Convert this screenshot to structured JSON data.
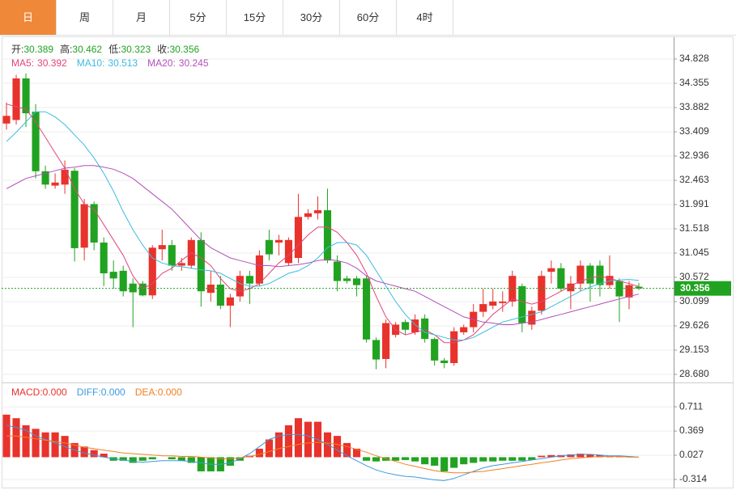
{
  "tabs": [
    "日",
    "周",
    "月",
    "5分",
    "15分",
    "30分",
    "60分",
    "4时"
  ],
  "active_tab": 0,
  "chart_data": [
    {
      "type": "candlestick",
      "header_labels": {
        "open": "开:",
        "high": "高:",
        "low": "低:",
        "close": "收:"
      },
      "up_color": "#e8322c",
      "down_color": "#21a321",
      "open": [
        33.57,
        33.64,
        34.45,
        33.8,
        32.64,
        32.36,
        32.38,
        32.65,
        31.15,
        32.0,
        31.25,
        30.68,
        30.7,
        30.45,
        30.45,
        30.22,
        31.12,
        31.2,
        30.8,
        30.8,
        31.3,
        30.27,
        30.43,
        30.02,
        30.2,
        30.6,
        30.45,
        31.3,
        31.25,
        30.85,
        30.95,
        31.75,
        31.82,
        31.88,
        30.88,
        30.55,
        30.55,
        30.55,
        29.35,
        28.98,
        29.45,
        29.7,
        29.5,
        29.77,
        29.37,
        28.95,
        28.9,
        29.5,
        29.6,
        29.9,
        30.02,
        30.07,
        30.1,
        30.4,
        29.65,
        29.92,
        30.68,
        30.75,
        30.3,
        30.45,
        30.8,
        30.8,
        30.42,
        30.5,
        30.18,
        30.389
      ],
      "high": [
        33.98,
        34.52,
        34.55,
        33.95,
        32.75,
        32.6,
        32.85,
        32.7,
        32.1,
        32.05,
        31.35,
        30.9,
        30.8,
        30.55,
        30.5,
        31.2,
        31.5,
        31.3,
        30.95,
        31.35,
        31.45,
        30.7,
        30.6,
        30.25,
        30.7,
        30.7,
        31.1,
        31.5,
        31.4,
        31.35,
        32.2,
        31.9,
        32.15,
        32.3,
        31.0,
        30.6,
        30.6,
        30.6,
        29.4,
        29.75,
        29.7,
        29.75,
        29.85,
        29.85,
        29.4,
        29.0,
        29.6,
        29.65,
        30.05,
        30.35,
        30.35,
        30.3,
        30.7,
        30.45,
        30.0,
        30.7,
        30.9,
        30.85,
        30.6,
        30.9,
        30.85,
        30.9,
        31.0,
        30.55,
        30.5,
        30.462
      ],
      "low": [
        33.45,
        33.55,
        33.5,
        32.5,
        32.3,
        32.3,
        32.2,
        30.88,
        30.9,
        31.1,
        30.4,
        30.35,
        30.2,
        29.6,
        30.2,
        30.15,
        30.9,
        30.7,
        30.7,
        30.75,
        30.0,
        30.1,
        29.95,
        29.6,
        30.1,
        30.05,
        30.4,
        30.9,
        31.0,
        30.8,
        30.85,
        31.7,
        31.7,
        30.85,
        30.3,
        30.45,
        30.2,
        29.3,
        28.78,
        28.8,
        29.4,
        29.45,
        29.45,
        29.3,
        28.85,
        28.8,
        28.85,
        29.45,
        29.5,
        29.8,
        29.95,
        29.9,
        30.0,
        29.5,
        29.55,
        29.85,
        30.45,
        30.3,
        29.95,
        30.3,
        30.1,
        30.2,
        30.35,
        29.7,
        29.95,
        30.323
      ],
      "close": [
        33.72,
        34.45,
        33.77,
        32.64,
        32.38,
        32.42,
        32.67,
        31.14,
        32.0,
        31.25,
        30.65,
        30.55,
        30.3,
        30.28,
        30.22,
        31.15,
        31.2,
        30.8,
        30.85,
        31.3,
        30.3,
        30.43,
        30.02,
        30.18,
        30.6,
        30.45,
        31.0,
        31.02,
        31.3,
        31.3,
        31.75,
        31.82,
        31.88,
        30.9,
        30.5,
        30.5,
        30.42,
        29.36,
        28.97,
        29.68,
        29.65,
        29.55,
        29.75,
        29.37,
        28.95,
        28.9,
        29.52,
        29.6,
        29.9,
        30.05,
        30.1,
        30.1,
        30.6,
        29.68,
        29.92,
        30.6,
        30.75,
        30.35,
        30.45,
        30.8,
        30.45,
        30.42,
        30.6,
        30.2,
        30.42,
        30.356
      ],
      "ma": [
        {
          "name": "MA5:",
          "color": "#e2467a",
          "values": [
            33.95,
            33.9,
            33.85,
            33.6,
            33.3,
            33.0,
            32.7,
            32.3,
            32.0,
            31.9,
            31.6,
            31.3,
            31.0,
            30.6,
            30.35,
            30.45,
            30.65,
            30.75,
            30.9,
            31.05,
            30.95,
            30.8,
            30.55,
            30.35,
            30.3,
            30.35,
            30.45,
            30.65,
            30.85,
            31.0,
            31.2,
            31.4,
            31.55,
            31.55,
            31.45,
            31.25,
            31.0,
            30.65,
            30.2,
            29.8,
            29.55,
            29.45,
            29.5,
            29.55,
            29.45,
            29.3,
            29.3,
            29.35,
            29.45,
            29.65,
            29.85,
            30.0,
            30.15,
            30.1,
            30.05,
            30.1,
            30.2,
            30.3,
            30.4,
            30.5,
            30.55,
            30.6,
            30.55,
            30.5,
            30.45,
            30.392
          ]
        },
        {
          "name": "MA10:",
          "color": "#3dbbe0",
          "values": [
            33.22,
            33.4,
            33.6,
            33.8,
            33.8,
            33.7,
            33.55,
            33.35,
            33.15,
            32.9,
            32.6,
            32.25,
            31.85,
            31.5,
            31.2,
            30.95,
            30.85,
            30.8,
            30.78,
            30.75,
            30.72,
            30.7,
            30.65,
            30.55,
            30.45,
            30.4,
            30.4,
            30.45,
            30.55,
            30.65,
            30.7,
            30.8,
            30.95,
            31.15,
            31.25,
            31.25,
            31.2,
            31.0,
            30.7,
            30.4,
            30.1,
            29.85,
            29.65,
            29.5,
            29.45,
            29.4,
            29.35,
            29.35,
            29.4,
            29.5,
            29.6,
            29.7,
            29.75,
            29.8,
            29.85,
            29.9,
            30.0,
            30.1,
            30.2,
            30.3,
            30.38,
            30.45,
            30.5,
            30.52,
            30.53,
            30.513
          ]
        },
        {
          "name": "MA20:",
          "color": "#b24fba",
          "values": [
            32.3,
            32.4,
            32.5,
            32.55,
            32.6,
            32.65,
            32.7,
            32.72,
            32.75,
            32.75,
            32.72,
            32.68,
            32.6,
            32.5,
            32.35,
            32.2,
            32.05,
            31.9,
            31.7,
            31.5,
            31.3,
            31.15,
            31.05,
            30.95,
            30.9,
            30.85,
            30.8,
            30.8,
            30.78,
            30.8,
            30.82,
            30.85,
            30.9,
            30.92,
            30.9,
            30.85,
            30.75,
            30.6,
            30.5,
            30.45,
            30.4,
            30.35,
            30.3,
            30.2,
            30.1,
            30.0,
            29.9,
            29.8,
            29.75,
            29.7,
            29.68,
            29.65,
            29.65,
            29.68,
            29.7,
            29.75,
            29.8,
            29.85,
            29.9,
            29.95,
            30.0,
            30.05,
            30.1,
            30.15,
            30.2,
            30.245
          ]
        }
      ],
      "ylim": [
        28.538,
        35.238
      ],
      "yticks": [
        34.828,
        34.355,
        33.882,
        33.409,
        32.936,
        32.463,
        31.991,
        31.518,
        31.045,
        30.572,
        30.099,
        29.626,
        29.153,
        {
          "value": 28.68,
          "label": "28.680"
        }
      ],
      "grid": true
    },
    {
      "type": "macd",
      "series": [
        {
          "name": "MACD:",
          "color": "#e8322c",
          "down_color": "#21a321",
          "legend_value": "0.000",
          "values": [
            0.6,
            0.55,
            0.45,
            0.4,
            0.35,
            0.35,
            0.3,
            0.2,
            0.15,
            0.1,
            0.05,
            -0.05,
            -0.05,
            -0.08,
            -0.05,
            -0.03,
            0.0,
            -0.03,
            -0.05,
            -0.08,
            -0.2,
            -0.2,
            -0.2,
            -0.12,
            -0.05,
            0.02,
            0.12,
            0.25,
            0.35,
            0.45,
            0.55,
            0.5,
            0.5,
            0.35,
            0.3,
            0.2,
            0.12,
            -0.05,
            -0.06,
            -0.05,
            -0.05,
            -0.04,
            -0.06,
            -0.1,
            -0.12,
            -0.2,
            -0.15,
            -0.1,
            -0.08,
            -0.06,
            -0.06,
            -0.05,
            -0.05,
            -0.05,
            -0.04,
            0.02,
            0.03,
            0.03,
            0.04,
            0.05,
            0.04,
            0.03,
            0.02,
            0.01,
            0.01,
            0.0
          ]
        },
        {
          "name": "DIFF:",
          "color": "#3a9ae0",
          "legend_value": "0.000",
          "values": [
            0.45,
            0.42,
            0.38,
            0.3,
            0.25,
            0.2,
            0.15,
            0.1,
            0.06,
            0.03,
            0.0,
            -0.02,
            -0.04,
            -0.06,
            -0.07,
            -0.06,
            -0.05,
            -0.05,
            -0.05,
            -0.06,
            -0.08,
            -0.1,
            -0.1,
            -0.08,
            -0.02,
            0.05,
            0.15,
            0.25,
            0.3,
            0.32,
            0.32,
            0.3,
            0.25,
            0.18,
            0.1,
            0.02,
            -0.05,
            -0.12,
            -0.18,
            -0.22,
            -0.25,
            -0.27,
            -0.28,
            -0.3,
            -0.32,
            -0.33,
            -0.3,
            -0.25,
            -0.2,
            -0.15,
            -0.12,
            -0.1,
            -0.08,
            -0.06,
            -0.04,
            -0.02,
            0.0,
            0.02,
            0.03,
            0.04,
            0.04,
            0.03,
            0.02,
            0.02,
            0.01,
            0.0
          ]
        },
        {
          "name": "DEA:",
          "color": "#f08020",
          "legend_value": "0.000",
          "values": [
            0.3,
            0.3,
            0.28,
            0.26,
            0.24,
            0.22,
            0.2,
            0.17,
            0.14,
            0.12,
            0.1,
            0.08,
            0.06,
            0.05,
            0.04,
            0.03,
            0.02,
            0.02,
            0.01,
            0.01,
            0.0,
            -0.01,
            -0.02,
            -0.02,
            -0.01,
            0.01,
            0.04,
            0.08,
            0.12,
            0.15,
            0.18,
            0.2,
            0.21,
            0.2,
            0.18,
            0.15,
            0.11,
            0.07,
            0.02,
            -0.02,
            -0.06,
            -0.1,
            -0.13,
            -0.16,
            -0.19,
            -0.21,
            -0.22,
            -0.22,
            -0.21,
            -0.2,
            -0.18,
            -0.16,
            -0.14,
            -0.12,
            -0.1,
            -0.08,
            -0.06,
            -0.04,
            -0.02,
            -0.01,
            0.0,
            0.01,
            0.01,
            0.01,
            0.0,
            0.0
          ]
        }
      ],
      "ylim": [
        -0.44,
        1.02
      ],
      "yticks": [
        0.711,
        0.369,
        0.027,
        -0.314
      ],
      "grid": true
    }
  ]
}
